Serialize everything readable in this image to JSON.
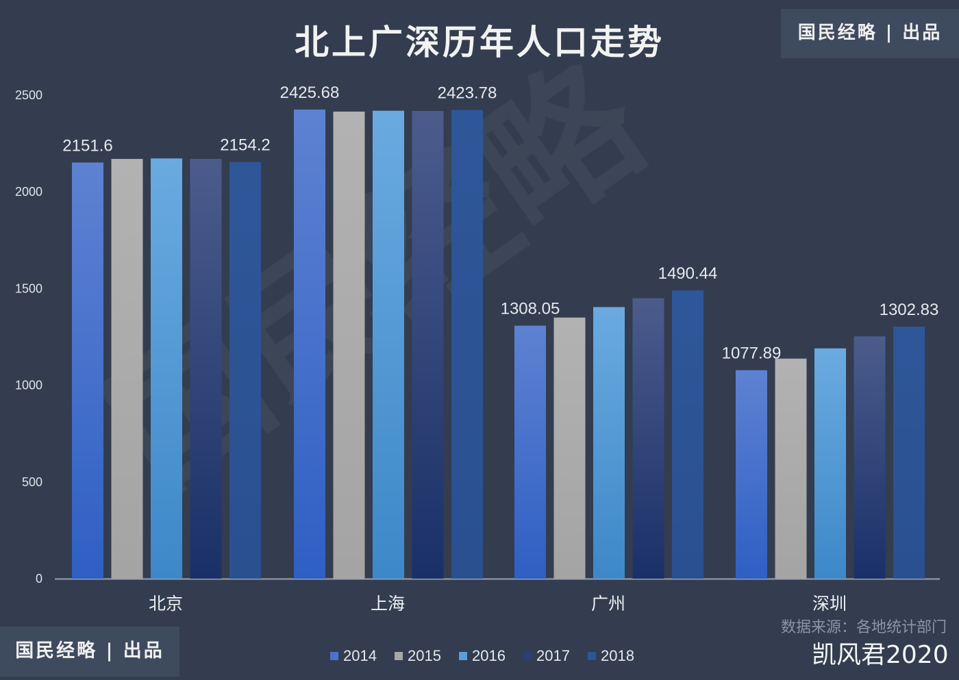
{
  "chart_data": {
    "type": "bar",
    "title": "北上广深历年人口走势",
    "categories": [
      "北京",
      "上海",
      "广州",
      "深圳"
    ],
    "series": [
      {
        "name": "2014",
        "values": [
          2151.6,
          2425.68,
          1308.05,
          1077.89
        ],
        "color": "#4a72cc"
      },
      {
        "name": "2015",
        "values": [
          2170.5,
          2415.27,
          1350.11,
          1137.87
        ],
        "color": "#a8a8a8"
      },
      {
        "name": "2016",
        "values": [
          2172.9,
          2419.7,
          1404.35,
          1190.84
        ],
        "color": "#5a9edb"
      },
      {
        "name": "2017",
        "values": [
          2170.7,
          2418.33,
          1449.84,
          1252.83
        ],
        "color": "#2a3f78"
      },
      {
        "name": "2018",
        "values": [
          2154.2,
          2423.78,
          1490.44,
          1302.83
        ],
        "color": "#2c5597"
      }
    ],
    "data_labels_shown_for": [
      "2014",
      "2018"
    ],
    "xlabel": "",
    "ylabel": "",
    "ylim": [
      0,
      2500
    ],
    "yticks": [
      0,
      500,
      1000,
      1500,
      2000,
      2500
    ],
    "grid": false,
    "legend": "bottom"
  },
  "branding": {
    "top": "国民经略 | 出品",
    "bottom": "国民经略 | 出品",
    "watermark": "国民经略"
  },
  "source": "数据来源：各地统计部门",
  "weibo_watermark": "凯风君2020"
}
